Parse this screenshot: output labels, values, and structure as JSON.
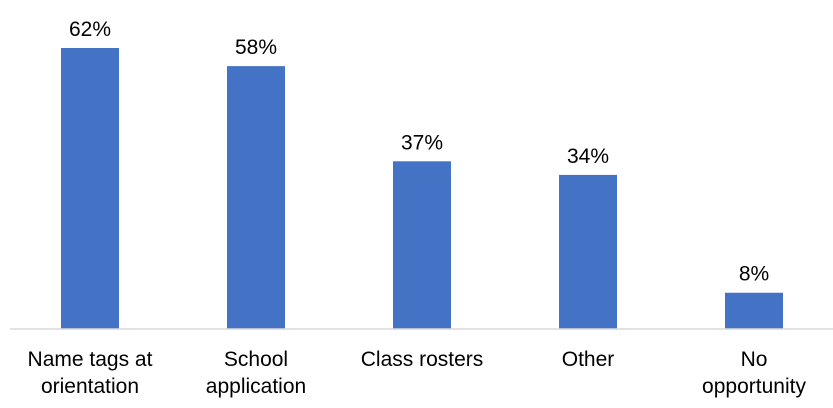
{
  "chart_data": {
    "type": "bar",
    "title": "",
    "xlabel": "",
    "ylabel": "",
    "categories": [
      [
        "Name tags at",
        "orientation"
      ],
      [
        "School",
        "application"
      ],
      [
        "Class rosters"
      ],
      [
        "Other"
      ],
      [
        "No",
        "opportunity"
      ]
    ],
    "values": [
      62,
      58,
      37,
      34,
      8
    ],
    "value_labels": [
      "62%",
      "58%",
      "37%",
      "34%",
      "8%"
    ],
    "unit": "%",
    "ylim": [
      0,
      62
    ],
    "grid": false,
    "legend": "none",
    "colors": {
      "bar": "#4472C4",
      "axis": "#D9D9D9",
      "text": "#000000"
    }
  }
}
